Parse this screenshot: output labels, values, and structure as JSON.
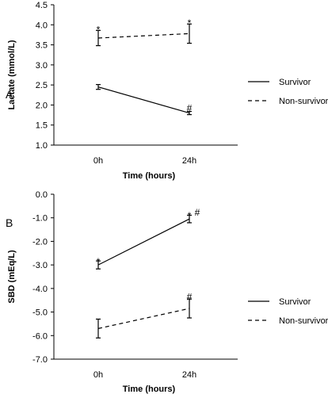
{
  "chart_data": [
    {
      "type": "line",
      "panel_label": "A",
      "title": "",
      "xlabel": "Time (hours)",
      "ylabel": "Lactate (mmol/L)",
      "categories": [
        "0h",
        "24h"
      ],
      "ylim": [
        1.0,
        4.5
      ],
      "yticks": [
        "1.0",
        "1.5",
        "2.0",
        "2.5",
        "3.0",
        "3.5",
        "4.0",
        "4.5"
      ],
      "grid": false,
      "legend_position": "right",
      "series": [
        {
          "name": "Survivor",
          "style": "solid",
          "values": [
            2.45,
            1.8
          ],
          "errors": [
            0.06,
            0.04
          ]
        },
        {
          "name": "Non-survivor",
          "style": "dashed",
          "values": [
            3.67,
            3.78
          ],
          "errors": [
            0.19,
            0.24
          ]
        }
      ],
      "annotations": [
        {
          "text": "*",
          "x": "0h",
          "y": 3.96
        },
        {
          "text": "*",
          "x": "24h",
          "y": 4.12
        },
        {
          "text": "#",
          "x": "24h",
          "y": 1.92
        }
      ]
    },
    {
      "type": "line",
      "panel_label": "B",
      "title": "",
      "xlabel": "Time (hours)",
      "ylabel": "SBD (mEq/L)",
      "categories": [
        "0h",
        "24h"
      ],
      "ylim": [
        -7.0,
        0.0
      ],
      "yticks": [
        "-7.0",
        "-6.0",
        "-5.0",
        "-4.0",
        "-3.0",
        "-2.0",
        "-1.0",
        "0.0"
      ],
      "grid": false,
      "legend_position": "right",
      "series": [
        {
          "name": "Survivor",
          "style": "solid",
          "values": [
            -3.0,
            -1.05
          ],
          "errors": [
            0.17,
            0.16
          ]
        },
        {
          "name": "Non-survivor",
          "style": "dashed",
          "values": [
            -5.7,
            -4.85
          ],
          "errors": [
            0.4,
            0.4
          ]
        }
      ],
      "annotations": [
        {
          "text": "*",
          "x": "0h",
          "y": -2.72
        },
        {
          "text": "*",
          "x": "24h",
          "y": -0.78
        },
        {
          "text": "#",
          "x": "24h",
          "y": -0.78,
          "shift": 1
        },
        {
          "text": "#",
          "x": "24h",
          "y": -4.35
        }
      ]
    }
  ],
  "colors": {
    "line": "#000000",
    "axis": "#000000",
    "background": "#ffffff"
  }
}
